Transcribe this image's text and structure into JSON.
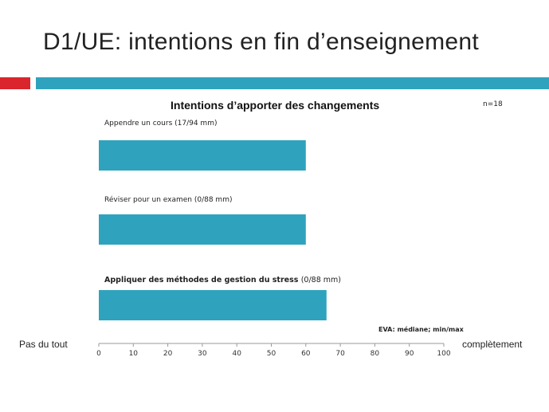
{
  "slide": {
    "title": "D1/UE: intentions en fin d’enseignement"
  },
  "colors": {
    "accent_red": "#d9252b",
    "accent_teal": "#2fa3bd",
    "bar": "#2fa3bd",
    "axis": "#999999"
  },
  "chart_data": {
    "type": "bar",
    "orientation": "horizontal",
    "title": "Intentions d’apporter des changements",
    "sample_size": "n=18",
    "categories": [
      "Appendre  un cours (17/94 mm)",
      "Réviser pour un examen  (0/88 mm)",
      "Appliquer des méthodes de gestion du stress (0/88 mm)"
    ],
    "category_parts": [
      {
        "main": "Appendre  un cours (17/94 mm)",
        "suffix": "",
        "bold": false
      },
      {
        "main": "Réviser pour un examen  (0/88 mm)",
        "suffix": "",
        "bold": false
      },
      {
        "main": "Appliquer des méthodes de gestion du stress ",
        "suffix": "(0/88 mm)",
        "bold": true
      }
    ],
    "values": [
      60,
      60,
      66
    ],
    "xlim": [
      0,
      100
    ],
    "xticks": [
      0,
      10,
      20,
      30,
      40,
      50,
      60,
      70,
      80,
      90,
      100
    ],
    "note": "EVA: médiane; min/max",
    "scale_left_label": "Pas du tout",
    "scale_right_label": "complètement",
    "grid": false
  }
}
